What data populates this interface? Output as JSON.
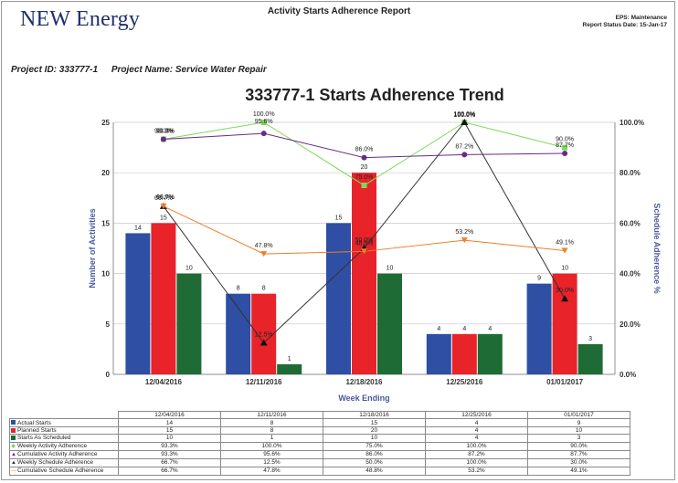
{
  "header": {
    "logo": "NEW Energy",
    "report_title": "Activity Starts Adherence Report",
    "eps": "EPS: Maintenance",
    "status_date": "Report Status Date: 15-Jan-17"
  },
  "project": {
    "id": "Project ID: 333777-1",
    "name": "Project Name: Service Water Repair"
  },
  "chart_data": {
    "type": "bar",
    "title": "333777-1 Starts Adherence Trend",
    "xlabel": "Week Ending",
    "ylabel": "Number of Activities",
    "y2label": "Schedule Adherence %",
    "ylim": [
      0,
      25
    ],
    "y2lim": [
      0,
      100
    ],
    "yticks": [
      "0",
      "5",
      "10",
      "15",
      "20",
      "25"
    ],
    "y2ticks": [
      "0.0%",
      "20.0%",
      "40.0%",
      "60.0%",
      "80.0%",
      "100.0%"
    ],
    "grid": true,
    "categories": [
      "12/04/2016",
      "12/11/2016",
      "12/18/2016",
      "12/25/2016",
      "01/01/2017"
    ],
    "bar_series": [
      {
        "name": "Actual Starts",
        "color": "#2e4fa3",
        "values": [
          14,
          8,
          15,
          4,
          9
        ]
      },
      {
        "name": "Planned Starts",
        "color": "#e8232a",
        "values": [
          15,
          8,
          20,
          4,
          10
        ]
      },
      {
        "name": "Starts As Scheduled",
        "color": "#1e6b35",
        "values": [
          10,
          1,
          10,
          4,
          3
        ]
      }
    ],
    "line_series": [
      {
        "name": "Weekly Activity Adherence",
        "color": "#7ed957",
        "marker": "square",
        "values": [
          93.3,
          100.0,
          75.0,
          100.0,
          90.0
        ],
        "labels": [
          "93.3%",
          "100.0%",
          "75.0%",
          "100.0%",
          "90.0%"
        ]
      },
      {
        "name": "Cumulative Activity Adherence",
        "color": "#6a2a86",
        "marker": "circle",
        "values": [
          93.3,
          95.6,
          86.0,
          87.2,
          87.7
        ],
        "labels": [
          "93.3%",
          "95.6%",
          "86.0%",
          "87.2%",
          "87.7%"
        ]
      },
      {
        "name": "Weekly Schedule Adherence",
        "color": "#333333",
        "marker": "triangle",
        "values": [
          66.7,
          12.5,
          50.0,
          100.0,
          30.0
        ],
        "labels": [
          "66.7%",
          "12.5%",
          "50.0%",
          "100.0%",
          "30.0%"
        ]
      },
      {
        "name": "Cumulative Schedule Adherence",
        "color": "#f07d2a",
        "marker": "triangle-down",
        "values": [
          66.7,
          47.8,
          48.8,
          53.2,
          49.1
        ],
        "labels": [
          "66.7%",
          "47.8%",
          "48.8%",
          "53.2%",
          "49.1%"
        ]
      }
    ]
  },
  "table": {
    "rows": [
      {
        "label": "Actual Starts",
        "cells": [
          "14",
          "8",
          "15",
          "4",
          "9"
        ]
      },
      {
        "label": "Planned Starts",
        "cells": [
          "15",
          "8",
          "20",
          "4",
          "10"
        ]
      },
      {
        "label": "Starts As Scheduled",
        "cells": [
          "10",
          "1",
          "10",
          "4",
          "3"
        ]
      },
      {
        "label": "Weekly Activity Adherence",
        "cells": [
          "93.3%",
          "100.0%",
          "75.0%",
          "100.0%",
          "90.0%"
        ]
      },
      {
        "label": "Cumulative Activity Adherence",
        "cells": [
          "93.3%",
          "95.6%",
          "86.0%",
          "87.2%",
          "87.7%"
        ]
      },
      {
        "label": "Weekly Schedule Adherence",
        "cells": [
          "66.7%",
          "12.5%",
          "50.0%",
          "100.0%",
          "30.0%"
        ]
      },
      {
        "label": "Cumulative Schedule Adherence",
        "cells": [
          "66.7%",
          "47.8%",
          "48.8%",
          "53.2%",
          "49.1%"
        ]
      }
    ]
  }
}
